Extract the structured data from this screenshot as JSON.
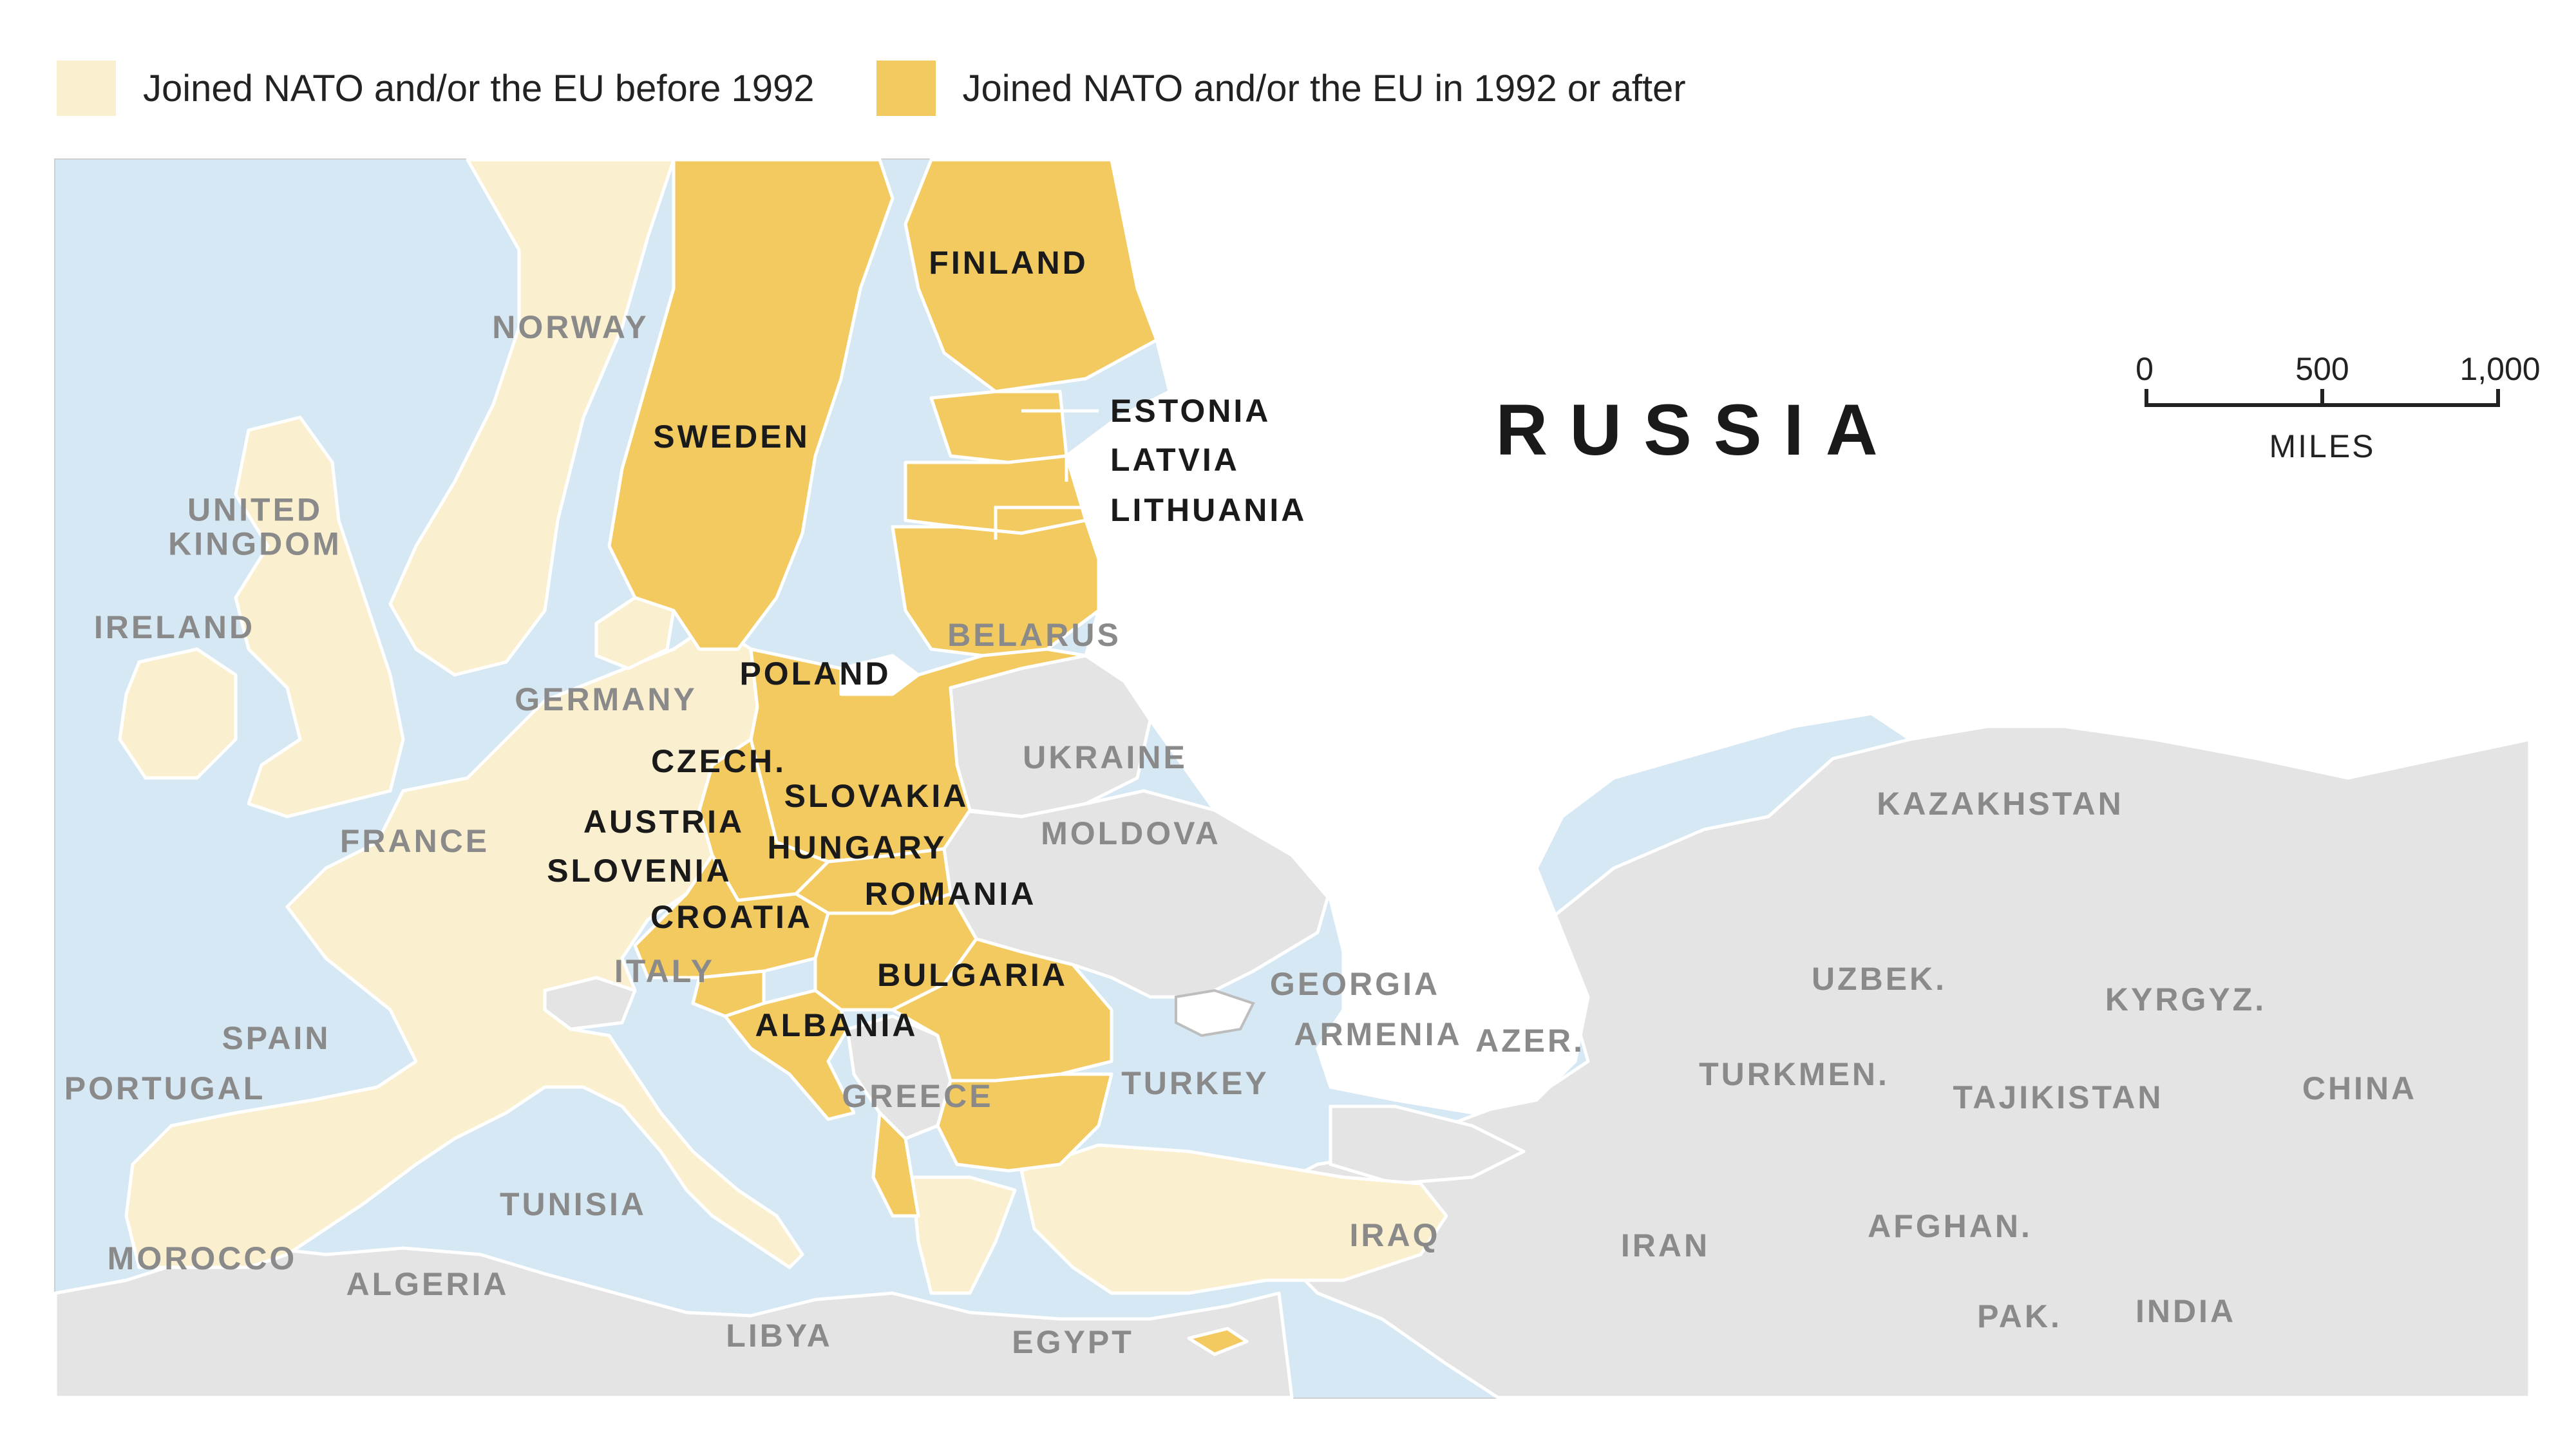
{
  "colors": {
    "water": "#d6e8f3",
    "before_1992": "#faefce",
    "after_1992": "#f2ca60",
    "non_member": "#e4e4e4",
    "russia": "#ffffff"
  },
  "legend": {
    "before": {
      "label": "Joined NATO and/or the EU before 1992"
    },
    "after": {
      "label": "Joined NATO and/or the EU in 1992 or after"
    }
  },
  "scale": {
    "ticks": [
      "0",
      "500",
      "1,000"
    ],
    "unit": "MILES"
  },
  "labels": {
    "russia": "RUSSIA",
    "finland": "FINLAND",
    "norway": "NORWAY",
    "sweden": "SWEDEN",
    "estonia": "ESTONIA",
    "latvia": "LATVIA",
    "lithuania": "LITHUANIA",
    "united_kingdom": "UNITED\nKINGDOM",
    "ireland": "IRELAND",
    "belarus": "BELARUS",
    "poland": "POLAND",
    "germany": "GERMANY",
    "ukraine": "UKRAINE",
    "czech": "CZECH.",
    "slovakia": "SLOVAKIA",
    "austria": "AUSTRIA",
    "hungary": "HUNGARY",
    "moldova": "MOLDOVA",
    "kazakhstan": "KAZAKHSTAN",
    "france": "FRANCE",
    "slovenia": "SLOVENIA",
    "romania": "ROMANIA",
    "croatia": "CROATIA",
    "italy": "ITALY",
    "bulgaria": "BULGARIA",
    "georgia": "GEORGIA",
    "uzbek": "UZBEK.",
    "kyrgyz": "KYRGYZ.",
    "spain": "SPAIN",
    "albania": "ALBANIA",
    "armenia": "ARMENIA",
    "azer": "AZER.",
    "turkmen": "TURKMEN.",
    "tajikistan": "TAJIKISTAN",
    "china": "CHINA",
    "portugal": "PORTUGAL",
    "greece": "GREECE",
    "turkey": "TURKEY",
    "tunisia": "TUNISIA",
    "iraq": "IRAQ",
    "iran": "IRAN",
    "afghan": "AFGHAN.",
    "morocco": "MOROCCO",
    "algeria": "ALGERIA",
    "libya": "LIBYA",
    "egypt": "EGYPT",
    "pak": "PAK.",
    "india": "INDIA"
  }
}
